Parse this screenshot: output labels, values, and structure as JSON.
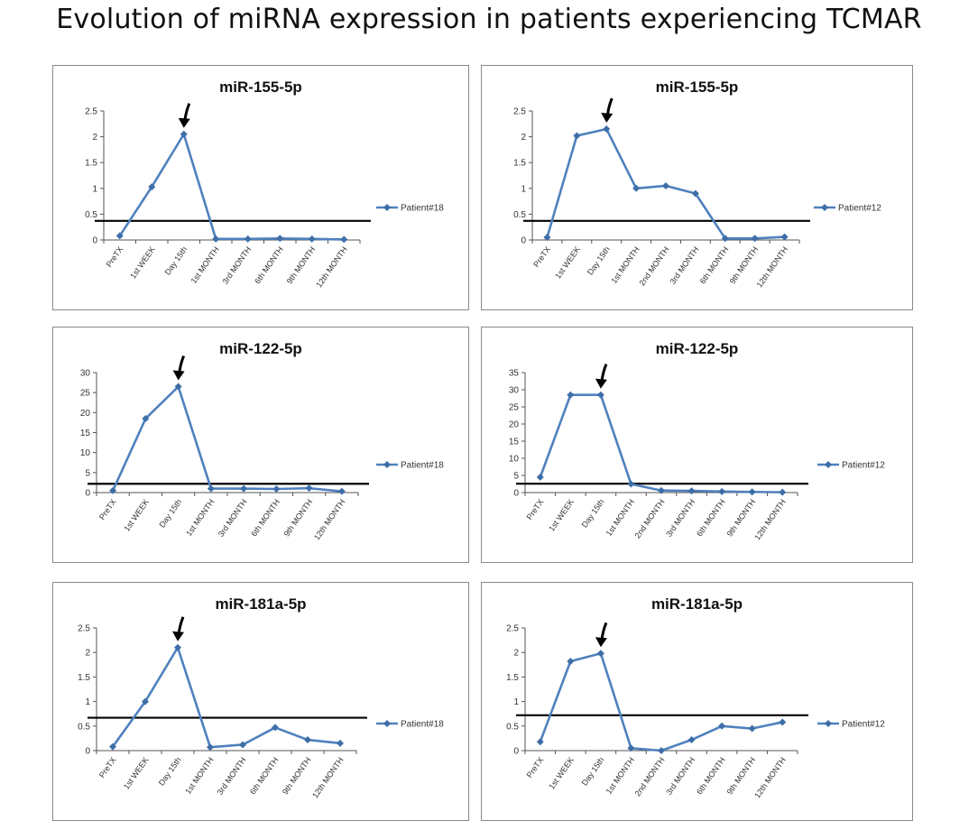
{
  "title": "Evolution of miRNA expression in patients experiencing TCMAR",
  "colors": {
    "series": "#4f81bd",
    "marker": "#3d6ea8",
    "threshold": "#000000",
    "arrow": "#000000"
  },
  "chart_data": [
    {
      "type": "line",
      "title": "miR-155-5p",
      "categories": [
        "PreTX",
        "1st WEEK",
        "Day 15th",
        "1st MONTH",
        "3rd MONTH",
        "6th MONTH",
        "9th MONTH",
        "12th MONTH"
      ],
      "series": [
        {
          "name": "Patient#18",
          "values": [
            0.08,
            1.03,
            2.05,
            0.02,
            0.02,
            0.03,
            0.02,
            0.01
          ]
        }
      ],
      "ylim": [
        0,
        2.5
      ],
      "yticks": [
        "0",
        "0.5",
        "1",
        "1.5",
        "2",
        "2.5"
      ],
      "threshold": 0.37,
      "arrow_category": 2,
      "legend": "right"
    },
    {
      "type": "line",
      "title": "miR-155-5p",
      "categories": [
        "PreTX",
        "1st WEEK",
        "Day 15th",
        "1st MONTH",
        "2nd MONTH",
        "3rd MONTH",
        "6th MONTH",
        "9th MONTH",
        "12th MONTH"
      ],
      "series": [
        {
          "name": "Patient#12",
          "values": [
            0.05,
            2.02,
            2.15,
            1.0,
            1.05,
            0.9,
            0.03,
            0.03,
            0.06
          ]
        }
      ],
      "ylim": [
        0,
        2.5
      ],
      "yticks": [
        "0",
        "0.5",
        "1",
        "1.5",
        "2",
        "2.5"
      ],
      "threshold": 0.37,
      "arrow_category": 2,
      "legend": "right"
    },
    {
      "type": "line",
      "title": "miR-122-5p",
      "categories": [
        "PreTX",
        "1st WEEK",
        "Day 15th",
        "1st MONTH",
        "3rd MONTH",
        "6th MONTH",
        "9th MONTH",
        "12th MONTH"
      ],
      "series": [
        {
          "name": "Patient#18",
          "values": [
            0.5,
            18.5,
            26.5,
            1.0,
            1.0,
            0.9,
            1.1,
            0.3
          ]
        }
      ],
      "ylim": [
        0,
        30
      ],
      "yticks": [
        "0",
        "5",
        "10",
        "15",
        "20",
        "25",
        "30"
      ],
      "threshold": 2.2,
      "arrow_category": 2,
      "legend": "right"
    },
    {
      "type": "line",
      "title": "miR-122-5p",
      "categories": [
        "PreTX",
        "1st WEEK",
        "Day 15th",
        "1st MONTH",
        "2nd MONTH",
        "3rd MONTH",
        "6th MONTH",
        "9th MONTH",
        "12th MONTH"
      ],
      "series": [
        {
          "name": "Patient#12",
          "values": [
            4.5,
            28.5,
            28.5,
            2.5,
            0.6,
            0.5,
            0.3,
            0.2,
            0.1
          ]
        }
      ],
      "ylim": [
        0,
        35
      ],
      "yticks": [
        "0",
        "5",
        "10",
        "15",
        "20",
        "25",
        "30",
        "35"
      ],
      "threshold": 2.6,
      "arrow_category": 2,
      "legend": "right"
    },
    {
      "type": "line",
      "title": "miR-181a-5p",
      "categories": [
        "PreTX",
        "1st WEEK",
        "Day 15th",
        "1st MONTH",
        "3rd MONTH",
        "6th MONTH",
        "9th MONTH",
        "12th MONTH"
      ],
      "series": [
        {
          "name": "Patient#18",
          "values": [
            0.08,
            1.0,
            2.1,
            0.07,
            0.12,
            0.47,
            0.22,
            0.15
          ]
        }
      ],
      "ylim": [
        0,
        2.5
      ],
      "yticks": [
        "0",
        "0.5",
        "1",
        "1.5",
        "2",
        "2.5"
      ],
      "threshold": 0.67,
      "arrow_category": 2,
      "legend": "right"
    },
    {
      "type": "line",
      "title": "miR-181a-5p",
      "categories": [
        "PreTX",
        "1st WEEK",
        "Day 15th",
        "1st MONTH",
        "2nd MONTH",
        "3rd MONTH",
        "6th MONTH",
        "9th MONTH",
        "12th MONTH"
      ],
      "series": [
        {
          "name": "Patient#12",
          "values": [
            0.18,
            1.82,
            1.98,
            0.05,
            0.0,
            0.22,
            0.5,
            0.45,
            0.58
          ]
        }
      ],
      "ylim": [
        0,
        2.5
      ],
      "yticks": [
        "0",
        "0.5",
        "1",
        "1.5",
        "2",
        "2.5"
      ],
      "threshold": 0.72,
      "arrow_category": 2,
      "legend": "right"
    }
  ]
}
